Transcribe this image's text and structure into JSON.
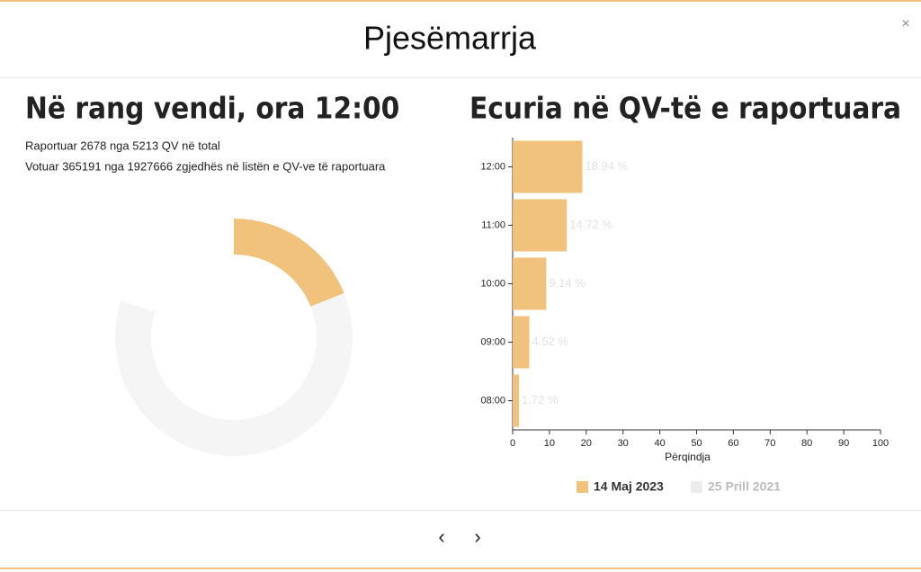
{
  "title": "Pjesëmarrja",
  "close": "×",
  "left": {
    "heading": "Në rang vendi, ora 12:00",
    "lines": [
      "Raportuar 2678 nga 5213 QV në total",
      "Votuar 365191 nga 1927666 zgjedhës në listën e QV-ve të raportuara"
    ]
  },
  "chart_data": [
    {
      "type": "donut",
      "values": [
        18.94
      ],
      "color": "#f0c27b",
      "track_color": "#f5f5f5"
    },
    {
      "type": "hbar",
      "title": "Ecuria në QV-të e raportuara",
      "categories": [
        "12:00",
        "11:00",
        "10:00",
        "09:00",
        "08:00"
      ],
      "series": [
        {
          "name": "14 Maj 2023",
          "color": "#f0c27b",
          "values": [
            18.94,
            14.72,
            9.14,
            4.52,
            1.72
          ],
          "value_labels": [
            "18.94 %",
            "14.72 %",
            "9.14 %",
            "4.52 %",
            "1.72 %"
          ]
        },
        {
          "name": "25 Prill 2021",
          "color": "#ececec"
        }
      ],
      "xlabel": "Përqindja",
      "xlim": [
        0,
        100
      ],
      "xticks": [
        0,
        10,
        20,
        30,
        40,
        50,
        60,
        70,
        80,
        90,
        100
      ]
    }
  ],
  "nav": {
    "prev": "‹",
    "next": "›"
  }
}
